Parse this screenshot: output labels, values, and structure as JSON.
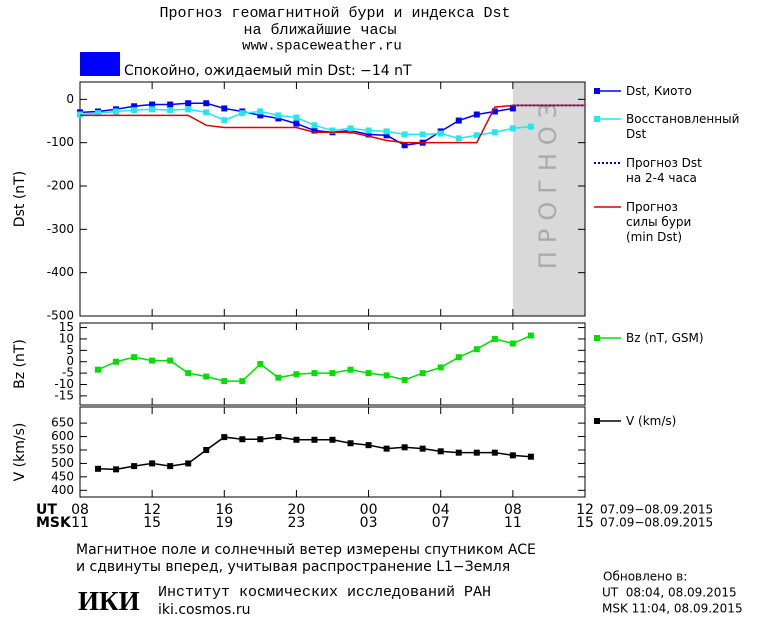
{
  "header": {
    "title": "Прогноз геомагнитной бури и индекса Dst",
    "subtitle": "на ближайшие часы",
    "url": "www.spaceweather.ru",
    "status": "Спокойно, ожидаемый min Dst: −14 nT",
    "status_color": "#0000ff"
  },
  "chart_data": [
    {
      "type": "line",
      "y_label": "Dst (nT)",
      "xlim": [
        0,
        28
      ],
      "ylim": [
        -500,
        40
      ],
      "yticks": [
        0,
        -100,
        -200,
        -300,
        -400,
        -500
      ],
      "forecast": {
        "span": [
          24,
          28
        ],
        "label": "ПРОГНОЗ",
        "color": "#d9d9d9"
      },
      "series": [
        {
          "name": "Dst, Киото",
          "color": "#0000ff",
          "marker": "square",
          "style": "solid",
          "x": [
            0,
            1,
            2,
            3,
            4,
            5,
            6,
            7,
            8,
            9,
            10,
            11,
            12,
            13,
            14,
            15,
            16,
            17,
            18,
            19,
            20,
            21,
            22,
            23,
            24
          ],
          "values": [
            -30,
            -28,
            -23,
            -16,
            -12,
            -12,
            -9,
            -9,
            -21,
            -28,
            -37,
            -44,
            -56,
            -72,
            -76,
            -72,
            -81,
            -83,
            -106,
            -100,
            -74,
            -49,
            -35,
            -28,
            -21
          ]
        },
        {
          "name": "Восстановленный\nDst",
          "color": "#22e6f0",
          "marker": "square",
          "style": "solid",
          "x": [
            0,
            1,
            2,
            3,
            4,
            5,
            6,
            7,
            8,
            9,
            10,
            11,
            12,
            13,
            14,
            15,
            16,
            17,
            18,
            19,
            20,
            21,
            22,
            23,
            24,
            25
          ],
          "values": [
            -35,
            -32,
            -28,
            -25,
            -23,
            -25,
            -23,
            -30,
            -48,
            -32,
            -28,
            -37,
            -42,
            -60,
            -72,
            -67,
            -72,
            -74,
            -81,
            -81,
            -79,
            -90,
            -83,
            -76,
            -67,
            -63
          ]
        },
        {
          "name": "Прогноз Dst\nна 2-4 часа",
          "color": "#0000cc",
          "marker": "none",
          "style": "dotted",
          "x": [
            24,
            28
          ],
          "values": [
            -14,
            -14
          ]
        },
        {
          "name": "Прогноз\nсилы бури\n(min Dst)",
          "color": "#e00000",
          "marker": "none",
          "style": "solid",
          "x": [
            0,
            6,
            7,
            8,
            12,
            13,
            15,
            16,
            17,
            18,
            22,
            23,
            24,
            28
          ],
          "values": [
            -37,
            -37,
            -60,
            -65,
            -65,
            -76,
            -76,
            -85,
            -95,
            -100,
            -100,
            -18,
            -14,
            -14
          ]
        }
      ]
    },
    {
      "type": "line",
      "y_label": "Bz (nT)",
      "xlim": [
        0,
        28
      ],
      "ylim": [
        -19,
        17
      ],
      "yticks": [
        15,
        10,
        5,
        0,
        -5,
        -10,
        -15
      ],
      "series": [
        {
          "name": "Bz (nT, GSM)",
          "color": "#00e000",
          "marker": "square",
          "style": "solid",
          "x": [
            1,
            2,
            3,
            4,
            5,
            6,
            7,
            8,
            9,
            10,
            11,
            12,
            13,
            14,
            15,
            16,
            17,
            18,
            19,
            20,
            21,
            22,
            23,
            24,
            25
          ],
          "values": [
            -3.5,
            0,
            2,
            0.5,
            0.5,
            -5,
            -6.5,
            -8.5,
            -8.5,
            -1,
            -7,
            -5.5,
            -5,
            -5,
            -3.5,
            -5,
            -6,
            -8,
            -5,
            -2.5,
            2,
            5.5,
            10,
            8,
            11.5
          ]
        }
      ]
    },
    {
      "type": "line",
      "y_label": "V (km/s)",
      "xlim": [
        0,
        28
      ],
      "ylim": [
        375,
        710
      ],
      "yticks": [
        650,
        600,
        550,
        500,
        450,
        400
      ],
      "xticks": [
        {
          "value": 0,
          "label": "08"
        },
        {
          "value": 4,
          "label": "12"
        },
        {
          "value": 8,
          "label": "16"
        },
        {
          "value": 12,
          "label": "20"
        },
        {
          "value": 16,
          "label": "00"
        },
        {
          "value": 20,
          "label": "04"
        },
        {
          "value": 24,
          "label": "08"
        },
        {
          "value": 28,
          "label": "12"
        }
      ],
      "x_labels_msk": [
        "11",
        "15",
        "19",
        "23",
        "03",
        "07",
        "11",
        "15"
      ],
      "x_row_ut": "UT",
      "x_row_msk": "MSK",
      "date_range_ut": "07.09−08.09.2015",
      "date_range_msk": "07.09−08.09.2015",
      "series": [
        {
          "name": "V (km/s)",
          "color": "#000000",
          "marker": "square",
          "style": "solid",
          "x": [
            1,
            2,
            3,
            4,
            5,
            6,
            7,
            8,
            9,
            10,
            11,
            12,
            13,
            14,
            15,
            16,
            17,
            18,
            19,
            20,
            21,
            22,
            23,
            24,
            25
          ],
          "values": [
            480,
            478,
            490,
            500,
            490,
            500,
            550,
            598,
            590,
            590,
            598,
            588,
            588,
            588,
            575,
            568,
            555,
            560,
            555,
            545,
            540,
            540,
            540,
            530,
            525
          ]
        }
      ]
    }
  ],
  "footer": {
    "note_1": "Магнитное поле и солнечный ветер измерены спутником ACE",
    "note_2": "и сдвинуты вперед, учитывая распространение L1−Земля",
    "logo": "ИКИ",
    "institute": "Институт космических исследований РАН",
    "site": "iki.cosmos.ru",
    "updated": "Обновлено в:",
    "updated_ut": "UT  08:04, 08.09.2015",
    "updated_msk": "MSK 11:04, 08.09.2015"
  }
}
